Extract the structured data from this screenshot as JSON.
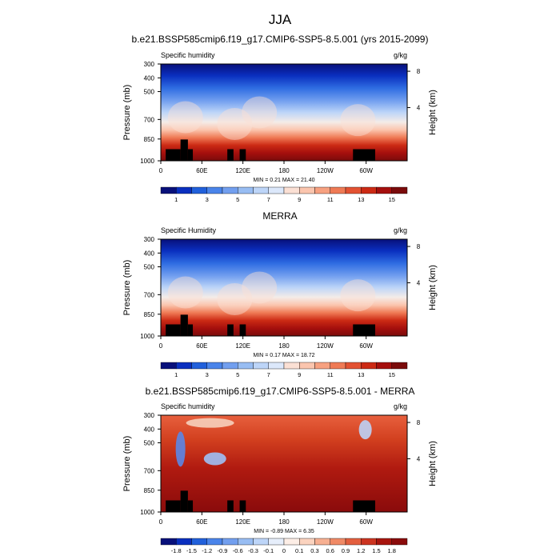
{
  "figure": {
    "title": "JJA"
  },
  "chart_data": [
    {
      "type": "heatmap",
      "title": "b.e21.BSSP585cmip6.f19_g17.CMIP6-SSP5-8.5.001 (yrs 2015-2099)",
      "variable": "Specific humidity",
      "units": "g/kg",
      "ylabel": "Pressure (mb)",
      "ylabel_right": "Height (km)",
      "x_ticks": [
        "0",
        "60E",
        "120E",
        "180",
        "120W",
        "60W"
      ],
      "y_ticks": [
        "300",
        "400",
        "500",
        "700",
        "850",
        "1000"
      ],
      "right_ticks": [
        "8",
        "4"
      ],
      "stats": "MIN =   0.21  MAX =  21.40",
      "colorbar_labels": [
        "1",
        "3",
        "5",
        "7",
        "9",
        "11",
        "13",
        "15"
      ],
      "colorbar_colors": [
        "#08107a",
        "#0a2fbf",
        "#2160db",
        "#4a84ea",
        "#729fef",
        "#98bdf3",
        "#bdd5f8",
        "#dce8fb",
        "#fbe0d4",
        "#fbc5ae",
        "#f7a180",
        "#ef7a55",
        "#e35232",
        "#cc2a14",
        "#a50f0d",
        "#7a0b0b"
      ],
      "min": 0.21,
      "max": 21.4
    },
    {
      "type": "heatmap",
      "title": "MERRA",
      "variable": "Specific Humidity",
      "units": "g/kg",
      "ylabel": "Pressure (mb)",
      "ylabel_right": "Height (km)",
      "x_ticks": [
        "0",
        "60E",
        "120E",
        "180",
        "120W",
        "60W"
      ],
      "y_ticks": [
        "300",
        "400",
        "500",
        "700",
        "850",
        "1000"
      ],
      "right_ticks": [
        "8",
        "4"
      ],
      "stats": "MIN =   0.17  MAX =  18.72",
      "colorbar_labels": [
        "1",
        "3",
        "5",
        "7",
        "9",
        "11",
        "13",
        "15"
      ],
      "colorbar_colors": [
        "#08107a",
        "#0a2fbf",
        "#2160db",
        "#4a84ea",
        "#729fef",
        "#98bdf3",
        "#bdd5f8",
        "#dce8fb",
        "#fbe0d4",
        "#fbc5ae",
        "#f7a180",
        "#ef7a55",
        "#e35232",
        "#cc2a14",
        "#a50f0d",
        "#7a0b0b"
      ],
      "min": 0.17,
      "max": 18.72
    },
    {
      "type": "heatmap",
      "title": "b.e21.BSSP585cmip6.f19_g17.CMIP6-SSP5-8.5.001 - MERRA",
      "variable": "Specific humidity",
      "units": "g/kg",
      "ylabel": "Pressure (mb)",
      "ylabel_right": "Height (km)",
      "x_ticks": [
        "0",
        "60E",
        "120E",
        "180",
        "120W",
        "60W"
      ],
      "y_ticks": [
        "300",
        "400",
        "500",
        "700",
        "850",
        "1000"
      ],
      "right_ticks": [
        "8",
        "4"
      ],
      "stats": "MIN =  -0.89  MAX =   6.35",
      "colorbar_labels": [
        "-1.8",
        "-1.5",
        "-1.2",
        "-0.9",
        "-0.6",
        "-0.3",
        "-0.1",
        "0",
        "0.1",
        "0.3",
        "0.6",
        "0.9",
        "1.2",
        "1.5",
        "1.8"
      ],
      "colorbar_colors": [
        "#08107a",
        "#0a2fbf",
        "#2160db",
        "#4a84ea",
        "#729fef",
        "#98bdf3",
        "#bdd5f8",
        "#e6eefb",
        "#fdeee6",
        "#fbd3bf",
        "#f7b092",
        "#f08a66",
        "#e35f3e",
        "#cc3420",
        "#a8150e",
        "#8a0b0b"
      ],
      "min": -0.89,
      "max": 6.35
    }
  ]
}
